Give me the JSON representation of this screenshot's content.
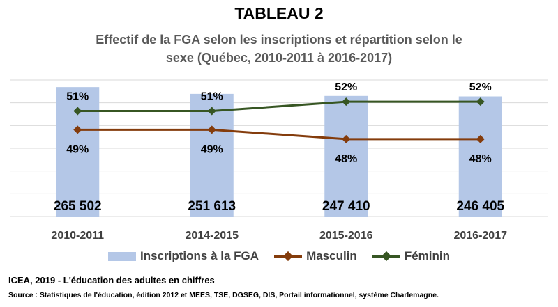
{
  "title": "TABLEAU 2",
  "subtitle_line1": "Effectif de la FGA selon les inscriptions et répartition selon le",
  "subtitle_line2": "sexe (Québec, 2010-2011 à 2016-2017)",
  "chart_data": {
    "type": "bar",
    "categories": [
      "2010-2011",
      "2014-2015",
      "2015-2016",
      "2016-2017"
    ],
    "series": [
      {
        "name": "Inscriptions à la FGA",
        "kind": "bar",
        "values": [
          265502,
          251613,
          247410,
          246405
        ],
        "labels": [
          "265 502",
          "251 613",
          "247 410",
          "246 405"
        ],
        "color": "#b4c7e7"
      },
      {
        "name": "Masculin",
        "kind": "line",
        "values": [
          49,
          49,
          48,
          48
        ],
        "labels": [
          "49%",
          "49%",
          "48%",
          "48%"
        ],
        "color": "#843c0c"
      },
      {
        "name": "Féminin",
        "kind": "line",
        "values": [
          51,
          51,
          52,
          52
        ],
        "labels": [
          "51%",
          "51%",
          "52%",
          "52%"
        ],
        "color": "#375623"
      }
    ],
    "ylim": [
      0,
      280000
    ],
    "grid": true,
    "legend": "bottom"
  },
  "footer": {
    "citation": "ICEA, 2019 - L'éducation des adultes en chiffres",
    "source": "Source : Statistiques de l'éducation, édition 2012 et MEES, TSE, DGSEG, DIS, Portail informationnel,  système Charlemagne."
  }
}
